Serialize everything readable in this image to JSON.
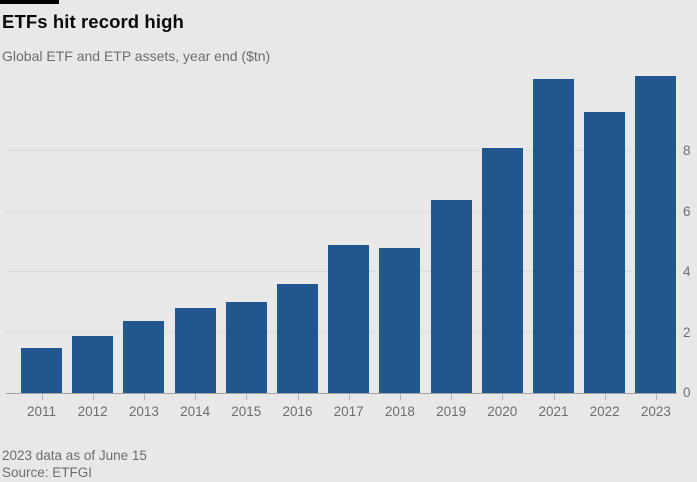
{
  "colors": {
    "background": "#e8e8e8",
    "bar": "#21578e",
    "gridline": "#dbdbdb",
    "axis_line": "#a3a3a3",
    "title_text": "#0a0a0a",
    "secondary_text": "#6e6e6e",
    "brand_marker": "#000000"
  },
  "chart_data": {
    "type": "bar",
    "title": "ETFs hit record high",
    "subtitle": "Global ETF and ETP assets, year end ($tn)",
    "unit": "$tn",
    "categories": [
      "2011",
      "2012",
      "2013",
      "2014",
      "2015",
      "2016",
      "2017",
      "2018",
      "2019",
      "2020",
      "2021",
      "2022",
      "2023"
    ],
    "values": [
      1.5,
      1.9,
      2.4,
      2.8,
      3.0,
      3.6,
      4.9,
      4.8,
      6.4,
      8.1,
      10.4,
      9.3,
      10.5
    ],
    "yticks": [
      0,
      2,
      4,
      6,
      8
    ],
    "ylim": [
      0,
      10.7
    ],
    "grid": "horizontal",
    "axis_labels_side": "right",
    "legend": "none",
    "note": "2023 data as of June 15",
    "source": "Source: ETFGI"
  }
}
